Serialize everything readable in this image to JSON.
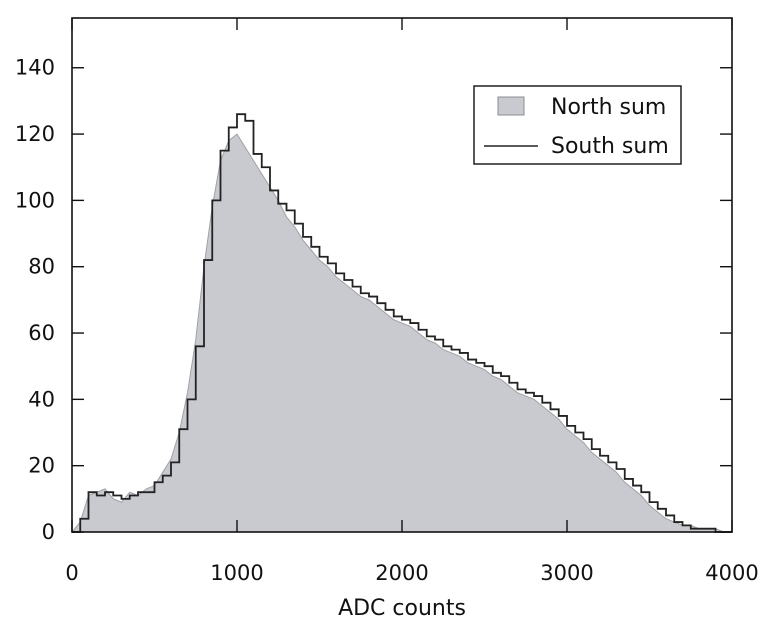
{
  "chart_data": {
    "type": "area",
    "xlabel": "ADC counts",
    "ylabel": "",
    "xlim": [
      0,
      4000
    ],
    "ylim": [
      0,
      155
    ],
    "x_ticks": [
      "0",
      "1000",
      "2000",
      "3000",
      "4000"
    ],
    "y_ticks": [
      "0",
      "20",
      "40",
      "60",
      "80",
      "100",
      "120",
      "140"
    ],
    "grid": false,
    "legend_position": "top-right",
    "x": [
      0,
      50,
      100,
      150,
      200,
      250,
      300,
      350,
      400,
      450,
      500,
      550,
      600,
      650,
      700,
      750,
      800,
      850,
      900,
      950,
      1000,
      1050,
      1100,
      1150,
      1200,
      1250,
      1300,
      1350,
      1400,
      1450,
      1500,
      1550,
      1600,
      1650,
      1700,
      1750,
      1800,
      1850,
      1900,
      1950,
      2000,
      2050,
      2100,
      2150,
      2200,
      2250,
      2300,
      2350,
      2400,
      2450,
      2500,
      2550,
      2600,
      2650,
      2700,
      2750,
      2800,
      2850,
      2900,
      2950,
      3000,
      3050,
      3100,
      3150,
      3200,
      3250,
      3300,
      3350,
      3400,
      3450,
      3500,
      3550,
      3600,
      3650,
      3700,
      3750,
      3800,
      3850,
      3900,
      3950,
      4000
    ],
    "series": [
      {
        "name": "North sum",
        "style": "filled",
        "color": "#c8cad0",
        "values": [
          0,
          3,
          11,
          12,
          13,
          10,
          9,
          12,
          11,
          13,
          14,
          18,
          22,
          30,
          42,
          58,
          80,
          98,
          112,
          118,
          120,
          116,
          112,
          108,
          104,
          100,
          95,
          92,
          88,
          85,
          82,
          80,
          77,
          75,
          73,
          71,
          70,
          68,
          66,
          64,
          63,
          62,
          60,
          58,
          57,
          55,
          54,
          53,
          51,
          50,
          49,
          47,
          46,
          44,
          42,
          41,
          40,
          38,
          36,
          34,
          31,
          29,
          27,
          24,
          22,
          20,
          18,
          15,
          13,
          11,
          8,
          6,
          4,
          3,
          2,
          2,
          1,
          1,
          1,
          0,
          0
        ]
      },
      {
        "name": "South sum",
        "style": "step",
        "color": "#222222",
        "values": [
          0,
          4,
          12,
          11,
          12,
          11,
          10,
          11,
          12,
          12,
          15,
          17,
          21,
          31,
          40,
          56,
          82,
          100,
          115,
          122,
          126,
          124,
          114,
          110,
          103,
          99,
          97,
          93,
          89,
          86,
          83,
          81,
          78,
          76,
          74,
          72,
          71,
          69,
          67,
          65,
          64,
          63,
          61,
          59,
          58,
          56,
          55,
          54,
          52,
          51,
          50,
          48,
          47,
          45,
          43,
          42,
          41,
          39,
          37,
          35,
          32,
          30,
          28,
          25,
          23,
          21,
          19,
          16,
          14,
          12,
          9,
          7,
          5,
          3,
          2,
          1,
          1,
          1,
          0,
          0,
          0
        ]
      }
    ]
  }
}
